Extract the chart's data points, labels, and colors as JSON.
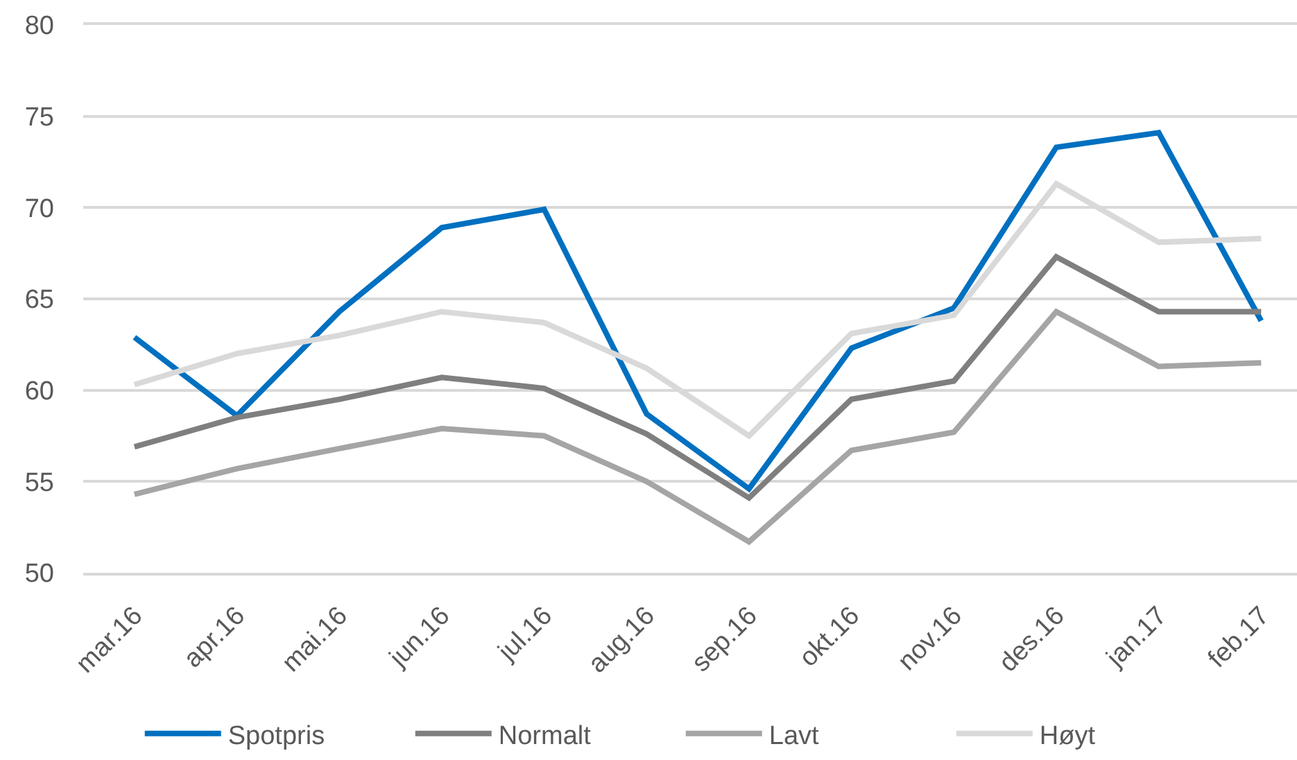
{
  "chart_data": {
    "type": "line",
    "categories": [
      "mar.16",
      "apr.16",
      "mai.16",
      "jun.16",
      "jul.16",
      "aug.16",
      "sep.16",
      "okt.16",
      "nov.16",
      "des.16",
      "jan.17",
      "feb.17"
    ],
    "series": [
      {
        "name": "Spotpris",
        "color": "#0070c0",
        "values": [
          62.9,
          58.6,
          64.3,
          68.9,
          69.9,
          58.7,
          54.6,
          62.3,
          64.5,
          73.3,
          74.1,
          63.8
        ]
      },
      {
        "name": "Normalt",
        "color": "#7f7f7f",
        "values": [
          56.9,
          58.5,
          59.5,
          60.7,
          60.1,
          57.6,
          54.1,
          59.5,
          60.5,
          67.3,
          64.3,
          64.3
        ]
      },
      {
        "name": "Lavt",
        "color": "#a5a5a5",
        "values": [
          54.3,
          55.7,
          56.8,
          57.9,
          57.5,
          55.0,
          51.7,
          56.7,
          57.7,
          64.3,
          61.3,
          61.5
        ]
      },
      {
        "name": "Høyt",
        "color": "#d9d9d9",
        "values": [
          60.3,
          62.0,
          63.0,
          64.3,
          63.7,
          61.2,
          57.5,
          63.1,
          64.1,
          71.3,
          68.1,
          68.3
        ]
      }
    ],
    "ylim": [
      50,
      80
    ],
    "yticks": [
      50,
      55,
      60,
      65,
      70,
      75,
      80
    ],
    "grid": "y",
    "legend": "bottom",
    "line_style": "solid"
  }
}
